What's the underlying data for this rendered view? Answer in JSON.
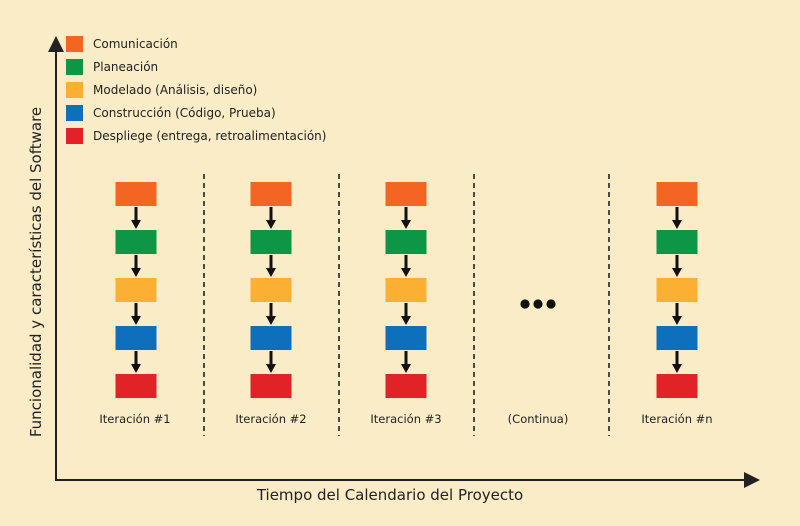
{
  "legend": [
    {
      "label": "Comunicación",
      "color": "#f26522"
    },
    {
      "label": "Planeación",
      "color": "#0d9645"
    },
    {
      "label": "Modelado (Análisis, diseño)",
      "color": "#fbb034"
    },
    {
      "label": "Construcción (Código, Prueba)",
      "color": "#0e6fbd"
    },
    {
      "label": "Despliege (entrega, retroalimentación)",
      "color": "#e12328"
    }
  ],
  "axes": {
    "y_label": "Funcionalidad y características del Software",
    "x_label": "Tiempo del Calendario del Proyecto"
  },
  "iterations": [
    {
      "label": "Iteración #1",
      "kind": "stack"
    },
    {
      "label": "Iteración #2",
      "kind": "stack"
    },
    {
      "label": "Iteración #3",
      "kind": "stack"
    },
    {
      "label": "(Continua)",
      "kind": "ellipsis"
    },
    {
      "label": "Iteración #n",
      "kind": "stack"
    }
  ]
}
